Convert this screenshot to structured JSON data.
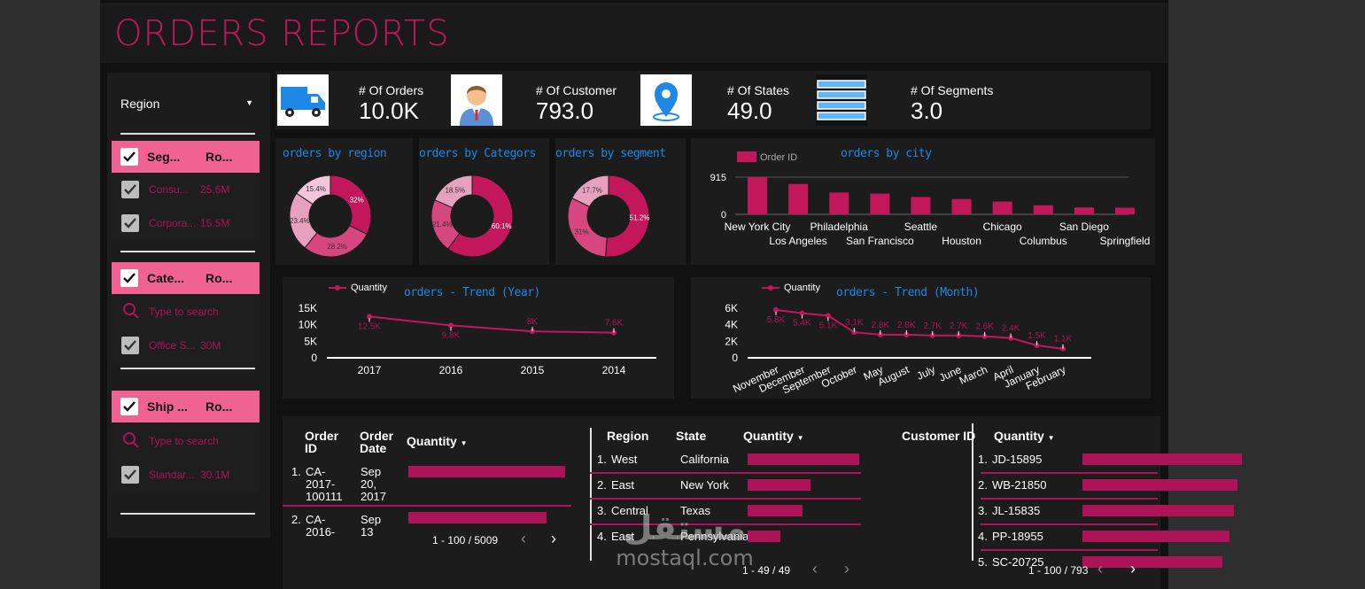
{
  "header": {
    "title": "ORDERS REPORTS"
  },
  "colors": {
    "accent": "#c2185b",
    "filter_pink": "#f06292",
    "chart_blue": "#1e88e5",
    "donut_dark": "#c2185b",
    "donut_mid": "#d6477f",
    "donut_light": "#e8a0bf"
  },
  "sidebar": {
    "region_label": "Region",
    "segment_filter": {
      "col1": "Seg...",
      "col2": "Ro...",
      "rows": [
        {
          "label": "Consu...",
          "value": "25.6M"
        },
        {
          "label": "Corpora...",
          "value": "15.5M"
        }
      ]
    },
    "category_filter": {
      "col1": "Cate...",
      "col2": "Ro...",
      "search_placeholder": "Type to search",
      "rows": [
        {
          "label": "Office S...",
          "value": "30M"
        }
      ]
    },
    "ship_filter": {
      "col1": "Ship ...",
      "col2": "Ro...",
      "search_placeholder": "Type to search",
      "rows": [
        {
          "label": "Standar...",
          "value": "30.1M"
        }
      ]
    }
  },
  "kpis": [
    {
      "icon": "truck-icon",
      "label": "# Of Orders",
      "value": "10.0K"
    },
    {
      "icon": "customer-icon",
      "label": "# Of Customer",
      "value": "793.0"
    },
    {
      "icon": "location-pin-icon",
      "label": "# Of States",
      "value": "49.0"
    },
    {
      "icon": "segments-list-icon",
      "label": "# Of Segments",
      "value": "3.0"
    }
  ],
  "chart_data": [
    {
      "type": "pie",
      "title": "orders by region",
      "slices": [
        {
          "value": 32,
          "label": "32%"
        },
        {
          "value": 28.2,
          "label": "28.2%"
        },
        {
          "value": 23.4,
          "label": "23.4%"
        },
        {
          "value": 15.4,
          "label": "15.4%"
        }
      ]
    },
    {
      "type": "pie",
      "title": "orders by Categors",
      "slices": [
        {
          "value": 60.1,
          "label": "60.1%"
        },
        {
          "value": 21.4,
          "label": "21.4%"
        },
        {
          "value": 18.5,
          "label": "18.5%"
        }
      ]
    },
    {
      "type": "pie",
      "title": "orders by segment",
      "slices": [
        {
          "value": 51.2,
          "label": "51.2%"
        },
        {
          "value": 31.1,
          "label": "31%"
        },
        {
          "value": 17.7,
          "label": "17.7%"
        }
      ]
    },
    {
      "type": "bar",
      "title": "orders by city",
      "legend": "Order ID",
      "ylim": [
        0,
        915
      ],
      "yticks": [
        "915",
        "0"
      ],
      "categories": [
        "New York City",
        "Los Angeles",
        "Philadelphia",
        "San Francisco",
        "Seattle",
        "Houston",
        "Chicago",
        "Columbus",
        "San Diego",
        "Springfield"
      ],
      "values": [
        915,
        747,
        537,
        510,
        428,
        377,
        314,
        222,
        170,
        163
      ]
    },
    {
      "type": "line",
      "title": "orders - Trend (Year)",
      "legend": "Quantity",
      "ylim": [
        0,
        15000
      ],
      "yticks": [
        "15K",
        "10K",
        "5K",
        "0"
      ],
      "categories": [
        "2017",
        "2016",
        "2015",
        "2014"
      ],
      "values": [
        12500,
        9800,
        8000,
        7600
      ],
      "labels": [
        "12.5K",
        "9.8K",
        "8K",
        "7.6K"
      ]
    },
    {
      "type": "line",
      "title": "orders - Trend (Month)",
      "legend": "Quantity",
      "ylim": [
        0,
        6000
      ],
      "yticks": [
        "6K",
        "4K",
        "2K",
        "0"
      ],
      "categories": [
        "November",
        "December",
        "September",
        "October",
        "May",
        "August",
        "July",
        "June",
        "March",
        "April",
        "January",
        "February"
      ],
      "values": [
        5800,
        5400,
        5100,
        3100,
        2800,
        2800,
        2700,
        2700,
        2600,
        2400,
        1500,
        1100
      ],
      "labels": [
        "5.8K",
        "5.4K",
        "5.1K",
        "3.1K",
        "2.8K",
        "2.8K",
        "2.7K",
        "2.7K",
        "2.6K",
        "2.4K",
        "1.5K",
        "1.1K"
      ]
    }
  ],
  "tables": {
    "orders": {
      "h1": "Order ID",
      "h2": "Order Date",
      "h3": "Quantity",
      "pager": "1 - 100 / 5009",
      "rows": [
        {
          "num": "1.",
          "id": "CA-2017-100111",
          "date": "Sep 20, 2017",
          "qty": 1.0
        },
        {
          "num": "2.",
          "id": "CA-2016-",
          "date": "Sep 13",
          "qty": 0.88
        }
      ]
    },
    "regions": {
      "h1": "Region",
      "h2": "State",
      "h3": "Quantity",
      "pager": "1 - 49 / 49",
      "rows": [
        {
          "num": "1.",
          "region": "West",
          "state": "California",
          "qty": 1.0
        },
        {
          "num": "2.",
          "region": "East",
          "state": "New York",
          "qty": 0.56
        },
        {
          "num": "3.",
          "region": "Central",
          "state": "Texas",
          "qty": 0.49
        },
        {
          "num": "4.",
          "region": "East",
          "state": "Pennsylvania",
          "qty": 0.29
        }
      ]
    },
    "customers": {
      "h1": "Customer ID",
      "h2": "Quantity",
      "pager": "1 - 100 / 793",
      "rows": [
        {
          "num": "1.",
          "id": "JD-15895",
          "qty": 1.0
        },
        {
          "num": "2.",
          "id": "WB-21850",
          "qty": 0.97
        },
        {
          "num": "3.",
          "id": "JL-15835",
          "qty": 0.95
        },
        {
          "num": "4.",
          "id": "PP-18955",
          "qty": 0.92
        },
        {
          "num": "5.",
          "id": "SC-20725",
          "qty": 0.88
        }
      ]
    }
  },
  "watermark": {
    "arabic": "مستقل",
    "latin": "mostaql.com"
  }
}
